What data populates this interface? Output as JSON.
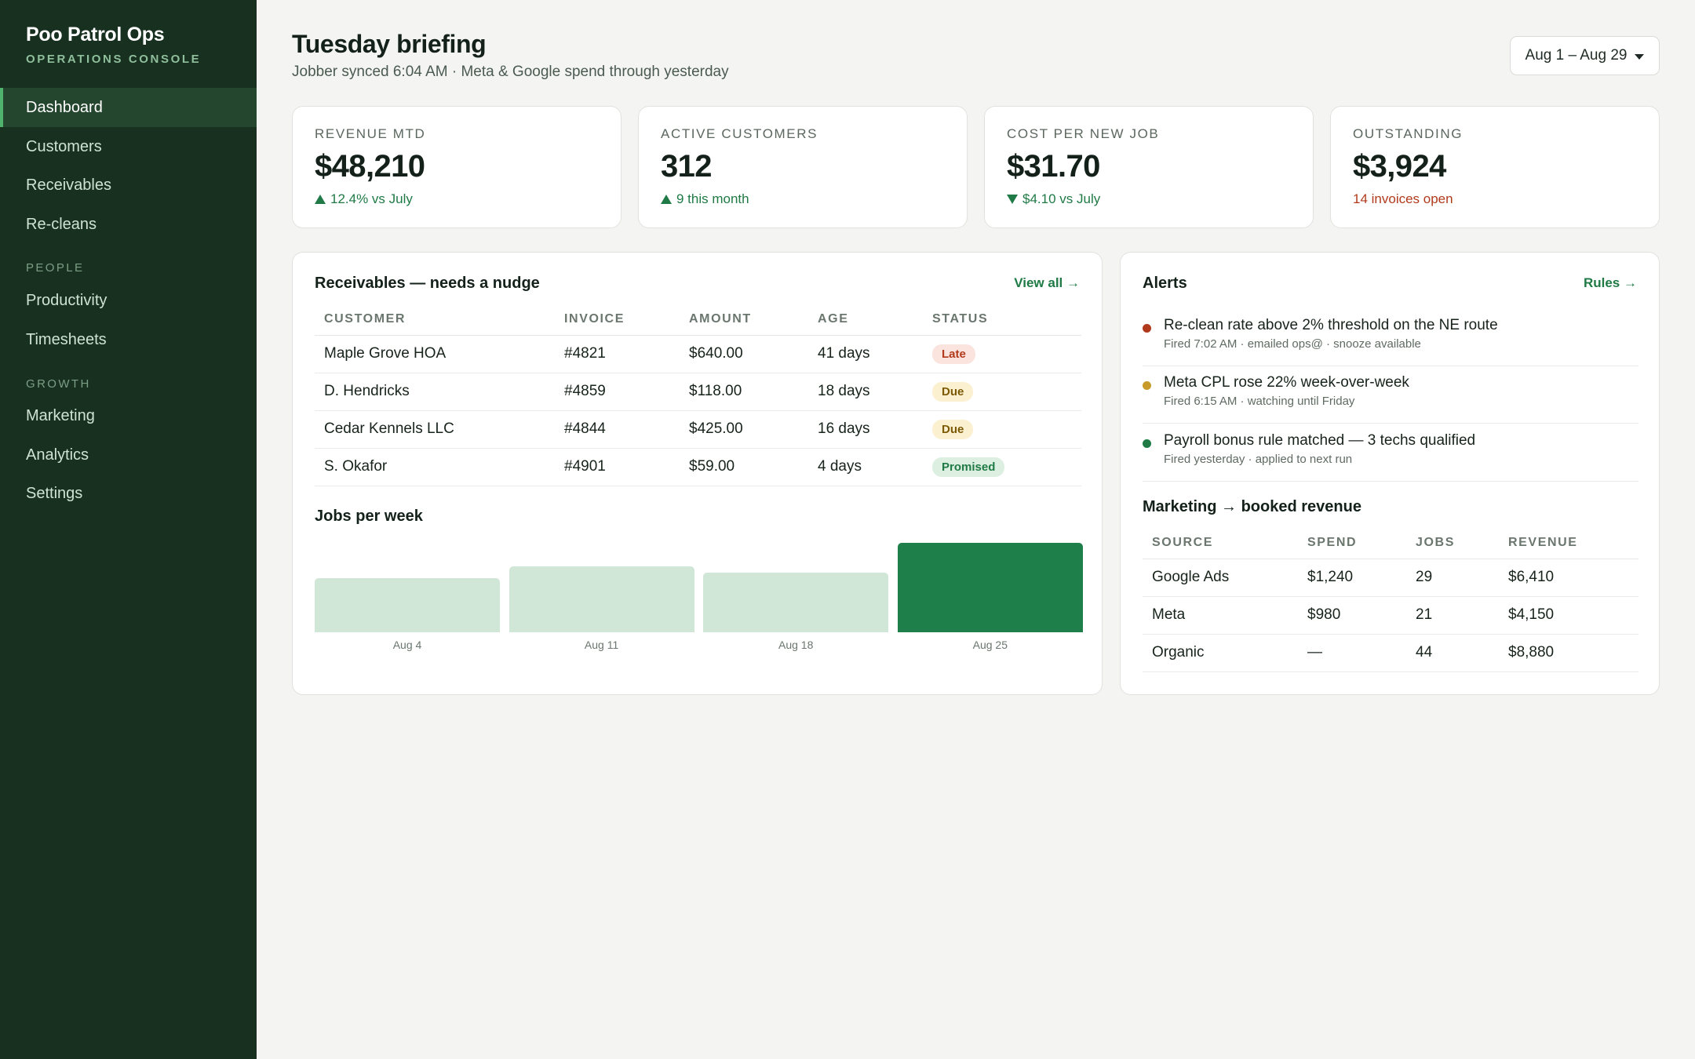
{
  "sidebar": {
    "brand": "Poo Patrol Ops",
    "subtitle": "OPERATIONS CONSOLE",
    "items": [
      {
        "label": "Dashboard"
      },
      {
        "label": "Customers"
      },
      {
        "label": "Receivables"
      },
      {
        "label": "Re-cleans"
      },
      {
        "label": "Productivity"
      },
      {
        "label": "Timesheets"
      },
      {
        "label": "Marketing"
      },
      {
        "label": "Analytics"
      },
      {
        "label": "Settings"
      }
    ],
    "sections": {
      "people": "PEOPLE",
      "growth": "GROWTH"
    },
    "active": "Dashboard"
  },
  "header": {
    "title": "Tuesday briefing",
    "subtitle": "Jobber synced 6:04 AM · Meta & Google spend through yesterday",
    "date_range": "Aug 1 – Aug 29"
  },
  "kpis": [
    {
      "label": "REVENUE MTD",
      "value": "$48,210",
      "delta": "12.4% vs July",
      "trend": "up"
    },
    {
      "label": "ACTIVE CUSTOMERS",
      "value": "312",
      "delta": "9 this month",
      "trend": "up"
    },
    {
      "label": "COST PER NEW JOB",
      "value": "$31.70",
      "delta": "$4.10 vs July",
      "trend": "down"
    },
    {
      "label": "OUTSTANDING",
      "value": "$3,924",
      "delta": "14 invoices open",
      "trend": "none"
    }
  ],
  "receivables": {
    "title": "Receivables — needs a nudge",
    "link": "View all →",
    "columns": [
      "CUSTOMER",
      "INVOICE",
      "AMOUNT",
      "AGE",
      "STATUS"
    ],
    "rows": [
      {
        "customer": "Maple Grove HOA",
        "invoice": "#4821",
        "amount": "$640.00",
        "age": "41 days",
        "status": "Late"
      },
      {
        "customer": "D. Hendricks",
        "invoice": "#4859",
        "amount": "$118.00",
        "age": "18 days",
        "status": "Due"
      },
      {
        "customer": "Cedar Kennels LLC",
        "invoice": "#4844",
        "amount": "$425.00",
        "age": "16 days",
        "status": "Due"
      },
      {
        "customer": "S. Okafor",
        "invoice": "#4901",
        "amount": "$59.00",
        "age": "4 days",
        "status": "Promised"
      }
    ]
  },
  "jobs_chart": {
    "title": "Jobs per week"
  },
  "chart_data": {
    "type": "bar",
    "categories": [
      "Aug 4",
      "Aug 11",
      "Aug 18",
      "Aug 25"
    ],
    "values": [
      69,
      84,
      76,
      114
    ],
    "highlight_index": 3,
    "colors": {
      "default": "#d0e6d6",
      "highlight": "#1f7f4a"
    },
    "ylim": [
      0,
      114
    ],
    "grid": false
  },
  "alerts": {
    "title": "Alerts",
    "link": "Rules →",
    "items": [
      {
        "title": "Re-clean rate above 2% threshold on the NE route",
        "meta": "Fired 7:02 AM · emailed ops@ · snooze available",
        "color": "#b23a1c"
      },
      {
        "title": "Meta CPL rose 22% week-over-week",
        "meta": "Fired 6:15 AM · watching until Friday",
        "color": "#c79a2a"
      },
      {
        "title": "Payroll bonus rule matched — 3 techs qualified",
        "meta": "Fired yesterday · applied to next run",
        "color": "#1f7a45"
      }
    ]
  },
  "marketing": {
    "title": "Marketing → booked revenue",
    "columns": [
      "SOURCE",
      "SPEND",
      "JOBS",
      "REVENUE"
    ],
    "rows": [
      {
        "source": "Google Ads",
        "spend": "$1,240",
        "jobs": "29",
        "revenue": "$6,410"
      },
      {
        "source": "Meta",
        "spend": "$980",
        "jobs": "21",
        "revenue": "$4,150"
      },
      {
        "source": "Organic",
        "spend": "—",
        "jobs": "44",
        "revenue": "$8,880"
      }
    ]
  }
}
